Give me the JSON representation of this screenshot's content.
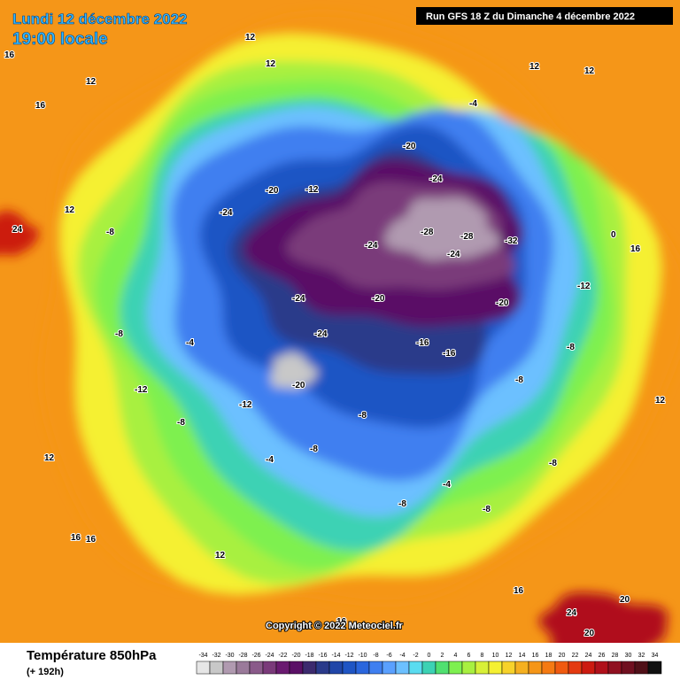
{
  "header": {
    "date": "Lundi 12 décembre 2022",
    "time": "19:00 locale",
    "run": "Run GFS 18 Z du Dimanche 4 décembre 2022"
  },
  "copyright": "Copyright © 2022 Meteociel.fr",
  "legend": {
    "title": "Température 850hPa",
    "lead": "(+ 192h)",
    "ticks": [
      -34,
      -32,
      -30,
      -28,
      -26,
      -24,
      -22,
      -20,
      -18,
      -16,
      -14,
      -12,
      -10,
      -8,
      -6,
      -4,
      -2,
      0,
      2,
      4,
      6,
      8,
      10,
      12,
      14,
      16,
      18,
      20,
      22,
      24,
      26,
      28,
      30,
      32,
      34
    ],
    "colors": [
      "#e6e6e6",
      "#c8c8c8",
      "#b09ab0",
      "#9a7a9a",
      "#8a5a8a",
      "#7a3a7a",
      "#6a1a70",
      "#5a1066",
      "#3c2a6e",
      "#2a3a8a",
      "#2046a8",
      "#1f55c4",
      "#2a66dd",
      "#3f7ff0",
      "#5aa0ff",
      "#6cc0ff",
      "#5adcf0",
      "#3cd2b4",
      "#50e070",
      "#7ef050",
      "#a8f040",
      "#d8f038",
      "#f5f032",
      "#f7d22a",
      "#f5b020",
      "#f59618",
      "#f57a12",
      "#f05a10",
      "#e43a10",
      "#cc1a10",
      "#b0101a",
      "#901020",
      "#701020",
      "#501018",
      "#101010"
    ]
  },
  "map_labels": [
    12,
    12,
    16,
    12,
    16,
    12,
    12,
    -4,
    -20,
    -24,
    -28,
    -28,
    -32,
    -24,
    -20,
    -20,
    -24,
    -24,
    -20,
    -16,
    -16,
    -8,
    -8,
    -12,
    0,
    16,
    -8,
    -4,
    -12,
    -8,
    -12,
    -8,
    -8,
    -4,
    -8,
    -8,
    -4,
    -8,
    12,
    12,
    16,
    16,
    12,
    16,
    16,
    24,
    20,
    20,
    24,
    12,
    -8,
    -24,
    -20,
    -12,
    -24
  ]
}
